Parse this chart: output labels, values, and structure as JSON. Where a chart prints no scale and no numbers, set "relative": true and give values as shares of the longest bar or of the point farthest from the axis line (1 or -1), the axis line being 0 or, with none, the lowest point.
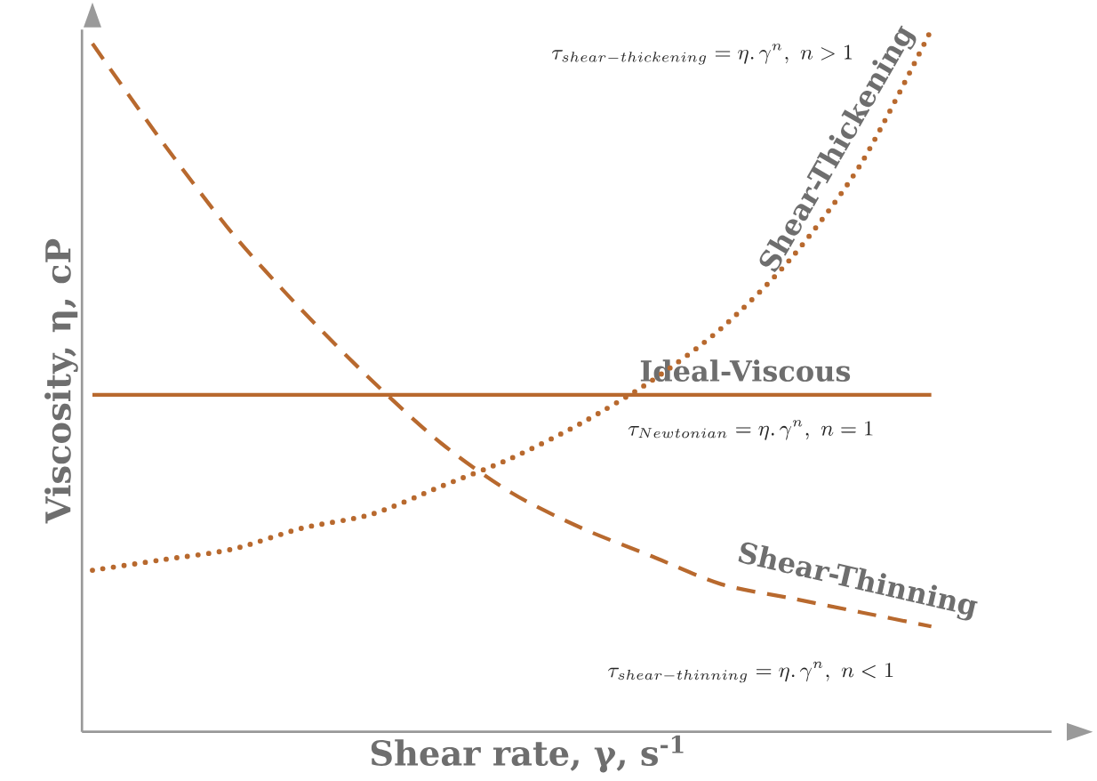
{
  "chart_data": {
    "type": "line",
    "relative": true,
    "xlabel": "Shear rate, γ, s$^{-1}$",
    "ylabel": "Viscosity, η, cP",
    "categories": [
      null,
      null,
      null,
      null,
      null,
      null,
      null,
      null,
      null,
      null,
      null,
      null,
      null
    ],
    "series": [
      {
        "name": "Shear-Thinning",
        "color": "#b8692e",
        "line_style": "dashed",
        "values": [
          0.98,
          0.84,
          0.71,
          0.6,
          0.5,
          0.41,
          0.34,
          0.29,
          0.25,
          0.21,
          0.19,
          0.17,
          0.15
        ]
      },
      {
        "name": "Ideal-Viscous",
        "color": "#b8692e",
        "line_style": "solid",
        "values": [
          0.48,
          0.48,
          0.48,
          0.48,
          0.48,
          0.48,
          0.48,
          0.48,
          0.48,
          0.48,
          0.48,
          0.48,
          0.48
        ]
      },
      {
        "name": "Shear-Thickening",
        "color": "#b8692e",
        "line_style": "dotted",
        "values": [
          0.23,
          0.245,
          0.26,
          0.29,
          0.31,
          0.35,
          0.39,
          0.44,
          0.5,
          0.575,
          0.675,
          0.81,
          1
        ]
      }
    ],
    "annotations": [
      "\\tau_{shear-thickening} = \\eta.\\,\\gamma^{n},\\ n > 1",
      "\\tau_{Newtonian} = \\eta.\\,\\gamma^{n},\\ n = 1",
      "\\tau_{shear-thinning} = \\eta.\\,\\gamma^{n},\\ n < 1"
    ],
    "legend": false,
    "marker": "none"
  }
}
